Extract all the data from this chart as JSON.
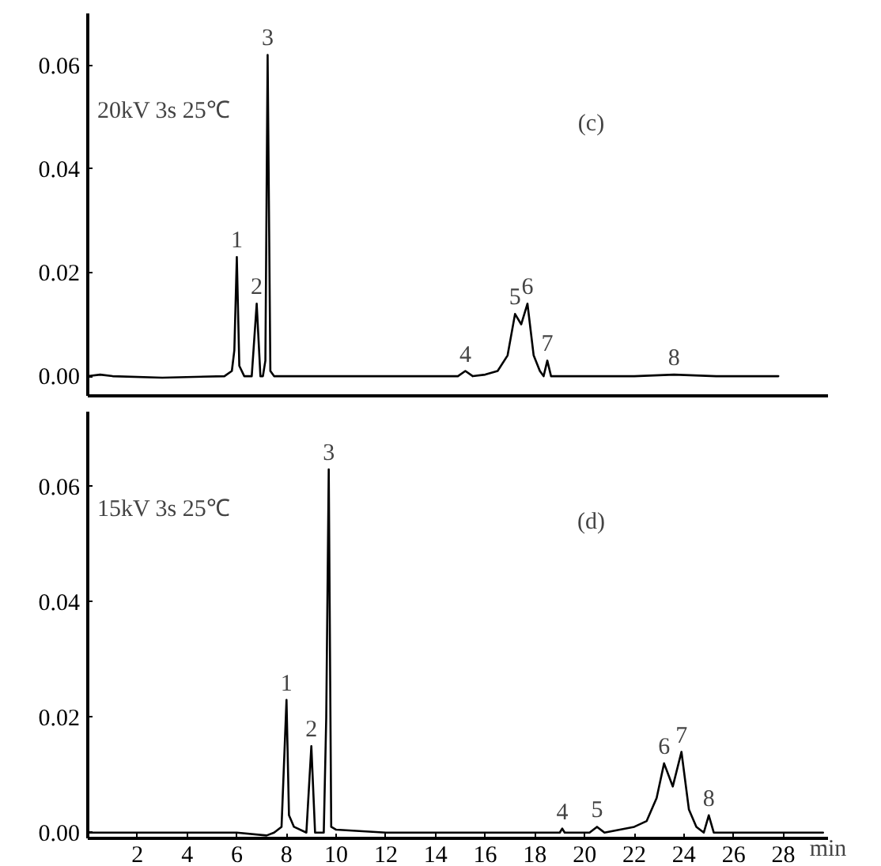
{
  "chart_data": [
    {
      "type": "line",
      "tick_labels": "y",
      "xlim": [
        0,
        29.8
      ],
      "ylim": [
        -0.0038,
        0.07
      ],
      "yticks": [
        {
          "value": 0,
          "label": "0.00"
        },
        {
          "value": 0.02,
          "label": "0.02"
        },
        {
          "value": 0.04,
          "label": "0.04"
        },
        {
          "value": 0.06,
          "label": "0.06"
        }
      ],
      "grid": false,
      "marker": "none",
      "line_style": "solid",
      "series": [
        {
          "color": "#000000",
          "x": [
            0,
            0.5,
            1,
            3,
            5.5,
            5.8,
            5.9,
            6.0,
            6.1,
            6.3,
            6.6,
            6.8,
            6.95,
            7.05,
            7.15,
            7.24,
            7.35,
            7.5,
            10,
            14.9,
            15.2,
            15.5,
            16,
            16.5,
            16.9,
            17.2,
            17.45,
            17.7,
            17.95,
            18.2,
            18.35,
            18.5,
            18.65,
            19,
            22,
            23.6,
            25.3,
            27.8
          ],
          "values": [
            0,
            0.0003,
            0,
            -0.0003,
            0,
            0.001,
            0.005,
            0.023,
            0.002,
            0,
            0,
            0.014,
            0,
            0,
            0.003,
            0.062,
            0.001,
            0,
            0,
            0,
            0.001,
            0,
            0.0003,
            0.001,
            0.004,
            0.012,
            0.01,
            0.014,
            0.004,
            0.001,
            0,
            0.003,
            0,
            0,
            0,
            0.0003,
            0,
            0
          ]
        }
      ],
      "annotations": [
        "20kV 3s 25℃",
        "(c)",
        {
          "text": "1",
          "x": 6.0,
          "y": 0.023
        },
        {
          "text": "2",
          "x": 6.8,
          "y": 0.014
        },
        {
          "text": "3",
          "x": 7.24,
          "y": 0.062
        },
        {
          "text": "4",
          "x": 15.2,
          "y": 0.001
        },
        {
          "text": "5",
          "x": 17.2,
          "y": 0.012
        },
        {
          "text": "6",
          "x": 17.7,
          "y": 0.014
        },
        {
          "text": "7",
          "x": 18.5,
          "y": 0.003
        },
        {
          "text": "8",
          "x": 23.6,
          "y": 0.0003
        }
      ]
    },
    {
      "type": "line",
      "xlabel": "min",
      "xlim": [
        0,
        29.8
      ],
      "ylim": [
        -0.001,
        0.073
      ],
      "xticks": [
        2,
        4,
        6,
        8,
        10,
        12,
        14,
        16,
        18,
        20,
        22,
        24,
        26,
        28
      ],
      "yticks": [
        {
          "value": 0,
          "label": "0.00"
        },
        {
          "value": 0.02,
          "label": "0.02"
        },
        {
          "value": 0.04,
          "label": "0.04"
        },
        {
          "value": 0.06,
          "label": "0.06"
        }
      ],
      "grid": false,
      "marker": "none",
      "line_style": "solid",
      "series": [
        {
          "color": "#000000",
          "x": [
            0,
            3,
            6,
            7.2,
            7.5,
            7.8,
            7.9,
            8.0,
            8.1,
            8.3,
            8.8,
            9.0,
            9.15,
            9.5,
            9.6,
            9.7,
            9.8,
            10,
            12,
            16,
            19,
            19.1,
            19.2,
            20.2,
            20.5,
            20.8,
            22,
            22.5,
            22.9,
            23.2,
            23.55,
            23.9,
            24.2,
            24.5,
            24.8,
            25.0,
            25.2,
            26,
            29.6
          ],
          "values": [
            0,
            0,
            0,
            -0.0005,
            0,
            0.001,
            0.012,
            0.023,
            0.003,
            0.001,
            0,
            0.015,
            0,
            0,
            0.02,
            0.063,
            0.001,
            0.0005,
            0,
            0,
            0,
            0.0007,
            0,
            0,
            0.001,
            0,
            0.001,
            0.002,
            0.006,
            0.012,
            0.008,
            0.014,
            0.004,
            0.001,
            0,
            0.003,
            0,
            0,
            0
          ]
        }
      ],
      "annotations": [
        "15kV 3s 25℃",
        "(d)",
        {
          "text": "1",
          "x": 8.0,
          "y": 0.023
        },
        {
          "text": "2",
          "x": 9.0,
          "y": 0.015
        },
        {
          "text": "3",
          "x": 9.7,
          "y": 0.063
        },
        {
          "text": "4",
          "x": 19.1,
          "y": 0.0007
        },
        {
          "text": "5",
          "x": 20.5,
          "y": 0.001
        },
        {
          "text": "6",
          "x": 23.2,
          "y": 0.012
        },
        {
          "text": "7",
          "x": 23.9,
          "y": 0.014
        },
        {
          "text": "8",
          "x": 25.0,
          "y": 0.003
        }
      ]
    }
  ]
}
